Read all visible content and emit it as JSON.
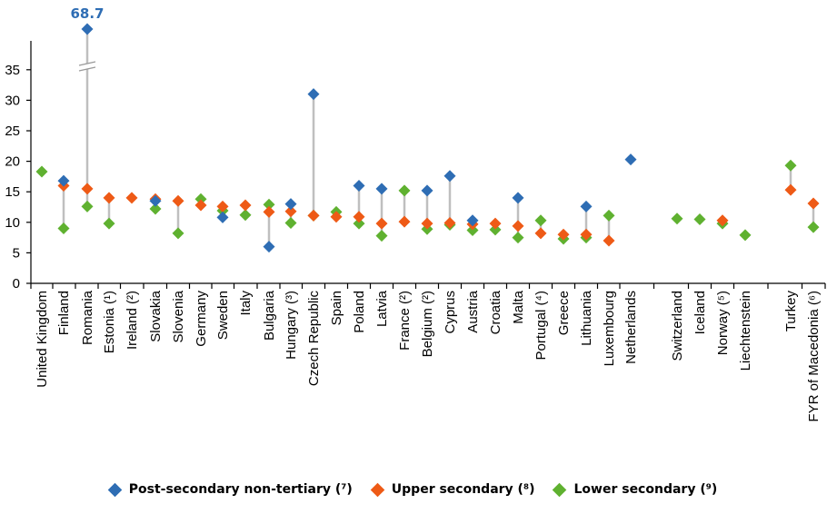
{
  "chart_data": {
    "type": "scatter",
    "title": "",
    "xlabel": "",
    "ylabel": "",
    "ylim": [
      0,
      35
    ],
    "yticks": [
      "0",
      "5",
      "10",
      "15",
      "20",
      "25",
      "30",
      "35"
    ],
    "axis_break": true,
    "grid": false,
    "legend_position": "bottom",
    "categories": [
      "United Kingdom",
      "Finland",
      "Romania",
      "Estonia (¹)",
      "Ireland (²)",
      "Slovakia",
      "Slovenia",
      "Germany",
      "Sweden",
      "Italy",
      "Bulgaria",
      "Hungary (³)",
      "Czech Republic",
      "Spain",
      "Poland",
      "Latvia",
      "France (²)",
      "Belgium (²)",
      "Cyprus",
      "Austria",
      "Croatia",
      "Malta",
      "Portugal (⁴)",
      "Greece",
      "Lithuania",
      "Luxembourg",
      "Netherlands",
      "Switzerland",
      "Iceland",
      "Norway (⁵)",
      "Liechtenstein",
      "Turkey",
      "FYR of Macedonia (⁶)"
    ],
    "series": [
      {
        "name": "Post-secondary non-tertiary (⁷)",
        "color": "#2e6db4",
        "values": [
          null,
          16.8,
          68.7,
          null,
          null,
          13.5,
          null,
          null,
          10.8,
          null,
          6.0,
          13.0,
          31.0,
          null,
          16.0,
          15.5,
          null,
          15.2,
          17.6,
          10.3,
          null,
          14.0,
          null,
          null,
          12.6,
          null,
          20.3,
          null,
          null,
          null,
          null,
          null,
          null
        ]
      },
      {
        "name": "Upper secondary (⁸)",
        "color": "#ee5a16",
        "values": [
          null,
          16.0,
          15.5,
          14.0,
          14.0,
          13.8,
          13.5,
          12.8,
          12.6,
          12.8,
          11.7,
          11.8,
          11.1,
          10.9,
          10.9,
          9.8,
          10.1,
          9.8,
          9.9,
          9.7,
          9.8,
          9.4,
          8.2,
          8.0,
          8.0,
          7.0,
          null,
          null,
          null,
          10.3,
          null,
          15.3,
          13.1
        ]
      },
      {
        "name": "Lower secondary (⁹)",
        "color": "#5fb130",
        "values": [
          18.3,
          9.0,
          12.6,
          9.8,
          null,
          12.2,
          8.2,
          13.8,
          11.9,
          11.2,
          12.9,
          9.9,
          11.1,
          11.7,
          9.8,
          7.8,
          15.2,
          8.9,
          9.6,
          8.7,
          8.8,
          7.5,
          10.3,
          7.3,
          7.5,
          11.1,
          null,
          10.6,
          10.5,
          9.8,
          7.9,
          19.3,
          9.2
        ]
      }
    ],
    "annotations": [
      {
        "text": "68.7",
        "category": "Romania",
        "color": "#2e6db4"
      }
    ]
  }
}
